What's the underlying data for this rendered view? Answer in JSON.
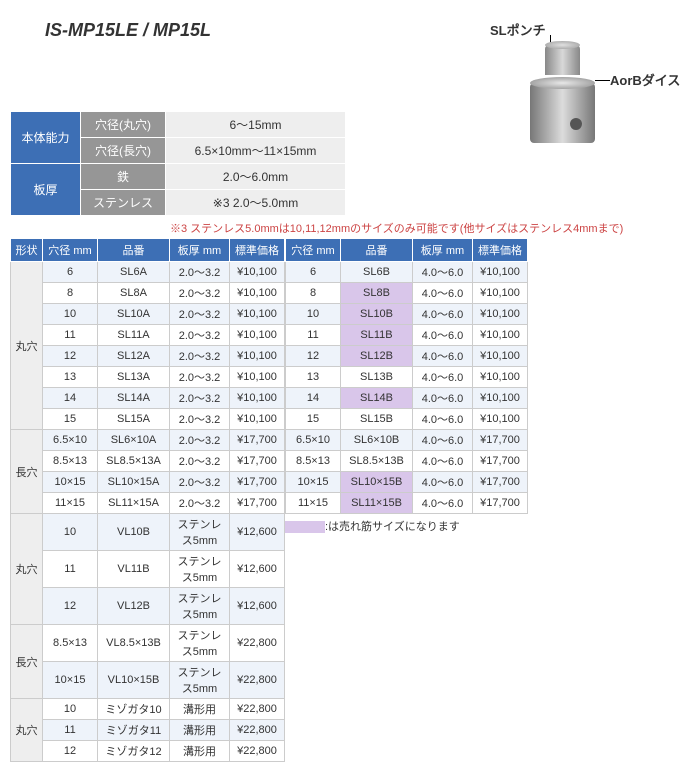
{
  "title": "IS-MP15LE / MP15L",
  "diagram": {
    "punch_label": "SLポンチ",
    "die_label": "AorBダイス"
  },
  "spec": {
    "body_label": "本体能力",
    "rows": [
      {
        "h": "穴径(丸穴)",
        "v": "6～15mm"
      },
      {
        "h": "穴径(長穴)",
        "v": "6.5×10mm～11×15mm"
      }
    ],
    "thick_label": "板厚",
    "thick_rows": [
      {
        "h": "鉄",
        "v": "2.0～6.0mm"
      },
      {
        "h": "ステンレス",
        "v": "※3  2.0～5.0mm"
      }
    ]
  },
  "note3": "※3  ステンレス5.0mmは10,11,12mmのサイズのみ可能です(他サイズはステンレス4mmまで)",
  "headers": {
    "shape": "形状",
    "dia": "穴径 mm",
    "pn": "品番",
    "th": "板厚 mm",
    "pr": "標準価格"
  },
  "left": [
    {
      "shape": "丸穴",
      "rows": [
        {
          "d": "6",
          "p": "SL6A",
          "t": "2.0～3.2",
          "y": "¥10,100"
        },
        {
          "d": "8",
          "p": "SL8A",
          "t": "2.0～3.2",
          "y": "¥10,100"
        },
        {
          "d": "10",
          "p": "SL10A",
          "t": "2.0～3.2",
          "y": "¥10,100"
        },
        {
          "d": "11",
          "p": "SL11A",
          "t": "2.0～3.2",
          "y": "¥10,100"
        },
        {
          "d": "12",
          "p": "SL12A",
          "t": "2.0～3.2",
          "y": "¥10,100"
        },
        {
          "d": "13",
          "p": "SL13A",
          "t": "2.0～3.2",
          "y": "¥10,100"
        },
        {
          "d": "14",
          "p": "SL14A",
          "t": "2.0～3.2",
          "y": "¥10,100"
        },
        {
          "d": "15",
          "p": "SL15A",
          "t": "2.0～3.2",
          "y": "¥10,100"
        }
      ]
    },
    {
      "shape": "長穴",
      "rows": [
        {
          "d": "6.5×10",
          "p": "SL6×10A",
          "t": "2.0～3.2",
          "y": "¥17,700"
        },
        {
          "d": "8.5×13",
          "p": "SL8.5×13A",
          "t": "2.0～3.2",
          "y": "¥17,700"
        },
        {
          "d": "10×15",
          "p": "SL10×15A",
          "t": "2.0～3.2",
          "y": "¥17,700"
        },
        {
          "d": "11×15",
          "p": "SL11×15A",
          "t": "2.0～3.2",
          "y": "¥17,700"
        }
      ]
    },
    {
      "shape": "丸穴",
      "rows": [
        {
          "d": "10",
          "p": "VL10B",
          "t": "ステンレス5mm",
          "y": "¥12,600"
        },
        {
          "d": "11",
          "p": "VL11B",
          "t": "ステンレス5mm",
          "y": "¥12,600"
        },
        {
          "d": "12",
          "p": "VL12B",
          "t": "ステンレス5mm",
          "y": "¥12,600"
        }
      ]
    },
    {
      "shape": "長穴",
      "rows": [
        {
          "d": "8.5×13",
          "p": "VL8.5×13B",
          "t": "ステンレス5mm",
          "y": "¥22,800"
        },
        {
          "d": "10×15",
          "p": "VL10×15B",
          "t": "ステンレス5mm",
          "y": "¥22,800"
        }
      ]
    },
    {
      "shape": "丸穴",
      "rows": [
        {
          "d": "10",
          "p": "ミゾガタ10",
          "t": "溝形用",
          "y": "¥22,800"
        },
        {
          "d": "11",
          "p": "ミゾガタ11",
          "t": "溝形用",
          "y": "¥22,800"
        },
        {
          "d": "12",
          "p": "ミゾガタ12",
          "t": "溝形用",
          "y": "¥22,800"
        }
      ]
    }
  ],
  "right": [
    {
      "rows": [
        {
          "d": "6",
          "p": "SL6B",
          "t": "4.0～6.0",
          "y": "¥10,100"
        },
        {
          "d": "8",
          "p": "SL8B",
          "t": "4.0～6.0",
          "y": "¥10,100",
          "hl": true
        },
        {
          "d": "10",
          "p": "SL10B",
          "t": "4.0～6.0",
          "y": "¥10,100",
          "hl": true
        },
        {
          "d": "11",
          "p": "SL11B",
          "t": "4.0～6.0",
          "y": "¥10,100",
          "hl": true
        },
        {
          "d": "12",
          "p": "SL12B",
          "t": "4.0～6.0",
          "y": "¥10,100",
          "hl": true
        },
        {
          "d": "13",
          "p": "SL13B",
          "t": "4.0～6.0",
          "y": "¥10,100"
        },
        {
          "d": "14",
          "p": "SL14B",
          "t": "4.0～6.0",
          "y": "¥10,100",
          "hl": true
        },
        {
          "d": "15",
          "p": "SL15B",
          "t": "4.0～6.0",
          "y": "¥10,100"
        }
      ]
    },
    {
      "rows": [
        {
          "d": "6.5×10",
          "p": "SL6×10B",
          "t": "4.0～6.0",
          "y": "¥17,700"
        },
        {
          "d": "8.5×13",
          "p": "SL8.5×13B",
          "t": "4.0～6.0",
          "y": "¥17,700"
        },
        {
          "d": "10×15",
          "p": "SL10×15B",
          "t": "4.0～6.0",
          "y": "¥17,700",
          "hl": true
        },
        {
          "d": "11×15",
          "p": "SL11×15B",
          "t": "4.0～6.0",
          "y": "¥17,700",
          "hl": true
        }
      ]
    }
  ],
  "legend": ":は売れ筋サイズになります"
}
